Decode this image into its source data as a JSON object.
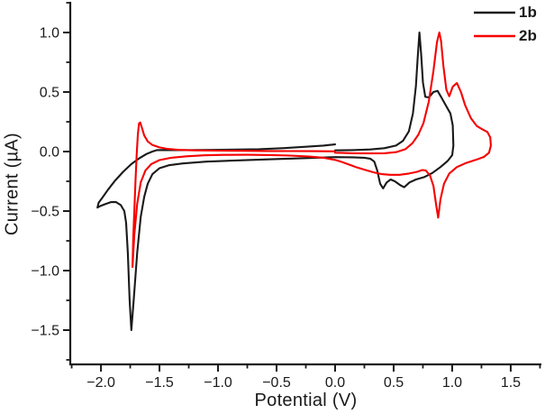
{
  "chart_data": {
    "type": "line",
    "title": "",
    "xlabel": "Potential (V)",
    "ylabel": "Current (µA)",
    "xlim": [
      -2.262,
      1.762
    ],
    "ylim": [
      -1.788,
      1.258
    ],
    "grid": false,
    "legend_position": "top-right",
    "x_major_ticks": [
      -2.0,
      -1.5,
      -1.0,
      -0.5,
      0.0,
      0.5,
      1.0,
      1.5
    ],
    "x_tick_labels": [
      "−2.0",
      "−1.5",
      "−1.0",
      "−0.5",
      "0.0",
      "0.5",
      "1.0",
      "1.5"
    ],
    "x_minor_ticks": [
      -2.25,
      -1.75,
      -1.25,
      -0.75,
      -0.25,
      0.25,
      0.75,
      1.25,
      1.75
    ],
    "y_major_ticks": [
      1.0,
      0.5,
      0.0,
      -0.5,
      -1.0,
      -1.5
    ],
    "y_tick_labels": [
      "1.0",
      "0.5",
      "0.0",
      "−0.5",
      "−1.0",
      "−1.5"
    ],
    "y_minor_ticks": [
      1.25,
      0.75,
      0.25,
      -0.25,
      -0.75,
      -1.25,
      -1.75
    ],
    "legend": [
      {
        "label": "1b",
        "color": "#1a1a1a"
      },
      {
        "label": "2b",
        "color": "#f60000"
      }
    ],
    "series": [
      {
        "name": "1b",
        "color": "#1a1a1a",
        "description": "cyclic voltammogram, scan 0 V -> +1.0 V -> -2.0 V -> 0 V; anodic peaks 0.72 V (1.0 uA) and 0.88 V (0.51 uA); cathodic return dips -0.31 uA at 0.59 V and 0.41 V; sharp reduction peak -1.50 uA at -1.74 V",
        "points": [
          [
            0.0,
            0.01
          ],
          [
            0.15,
            0.012
          ],
          [
            0.3,
            0.018
          ],
          [
            0.42,
            0.028
          ],
          [
            0.52,
            0.05
          ],
          [
            0.58,
            0.09
          ],
          [
            0.63,
            0.17
          ],
          [
            0.665,
            0.32
          ],
          [
            0.69,
            0.55
          ],
          [
            0.705,
            0.78
          ],
          [
            0.72,
            1.0
          ],
          [
            0.735,
            0.82
          ],
          [
            0.75,
            0.58
          ],
          [
            0.77,
            0.46
          ],
          [
            0.8,
            0.455
          ],
          [
            0.84,
            0.5
          ],
          [
            0.875,
            0.51
          ],
          [
            0.91,
            0.45
          ],
          [
            0.95,
            0.38
          ],
          [
            0.985,
            0.32
          ],
          [
            1.005,
            0.22
          ],
          [
            1.01,
            0.05
          ],
          [
            1.0,
            -0.03
          ],
          [
            0.96,
            -0.08
          ],
          [
            0.9,
            -0.13
          ],
          [
            0.83,
            -0.18
          ],
          [
            0.76,
            -0.215
          ],
          [
            0.69,
            -0.235
          ],
          [
            0.635,
            -0.26
          ],
          [
            0.59,
            -0.3
          ],
          [
            0.56,
            -0.285
          ],
          [
            0.51,
            -0.25
          ],
          [
            0.475,
            -0.235
          ],
          [
            0.44,
            -0.26
          ],
          [
            0.41,
            -0.31
          ],
          [
            0.385,
            -0.27
          ],
          [
            0.36,
            -0.16
          ],
          [
            0.335,
            -0.085
          ],
          [
            0.3,
            -0.06
          ],
          [
            0.25,
            -0.052
          ],
          [
            0.15,
            -0.048
          ],
          [
            0.0,
            -0.047
          ],
          [
            -0.25,
            -0.055
          ],
          [
            -0.55,
            -0.065
          ],
          [
            -0.85,
            -0.075
          ],
          [
            -1.1,
            -0.085
          ],
          [
            -1.3,
            -0.1
          ],
          [
            -1.42,
            -0.115
          ],
          [
            -1.5,
            -0.14
          ],
          [
            -1.56,
            -0.19
          ],
          [
            -1.6,
            -0.27
          ],
          [
            -1.63,
            -0.38
          ],
          [
            -1.66,
            -0.55
          ],
          [
            -1.69,
            -0.85
          ],
          [
            -1.72,
            -1.25
          ],
          [
            -1.74,
            -1.5
          ],
          [
            -1.755,
            -1.25
          ],
          [
            -1.77,
            -0.85
          ],
          [
            -1.785,
            -0.6
          ],
          [
            -1.8,
            -0.5
          ],
          [
            -1.83,
            -0.45
          ],
          [
            -1.87,
            -0.425
          ],
          [
            -1.915,
            -0.425
          ],
          [
            -1.96,
            -0.44
          ],
          [
            -2.0,
            -0.455
          ],
          [
            -2.03,
            -0.47
          ],
          [
            -2.02,
            -0.43
          ],
          [
            -1.99,
            -0.39
          ],
          [
            -1.94,
            -0.32
          ],
          [
            -1.88,
            -0.245
          ],
          [
            -1.81,
            -0.17
          ],
          [
            -1.74,
            -0.105
          ],
          [
            -1.67,
            -0.055
          ],
          [
            -1.61,
            -0.02
          ],
          [
            -1.56,
            0.0
          ],
          [
            -1.52,
            0.012
          ],
          [
            -1.47,
            0.013
          ],
          [
            -1.4,
            0.012
          ],
          [
            -1.25,
            0.012
          ],
          [
            -1.05,
            0.014
          ],
          [
            -0.85,
            0.017
          ],
          [
            -0.65,
            0.02
          ],
          [
            -0.45,
            0.028
          ],
          [
            -0.25,
            0.04
          ],
          [
            -0.1,
            0.05
          ],
          [
            0.0,
            0.06
          ]
        ]
      },
      {
        "name": "2b",
        "color": "#f60000",
        "description": "cyclic voltammogram, scan 0 V -> +1.3 V -> -1.78 V -> 0 V; anodic peaks 0.89 V (1.0 uA) and 1.04 V (0.58 uA); cathodic return spike -0.55 uA at 0.88 V; reduction spike -0.97 uA at -1.73 V with re-oxidation peak +0.25 uA at -1.67 V",
        "points": [
          [
            0.0,
            -0.01
          ],
          [
            0.15,
            -0.014
          ],
          [
            0.3,
            -0.016
          ],
          [
            0.42,
            -0.014
          ],
          [
            0.52,
            -0.005
          ],
          [
            0.6,
            0.02
          ],
          [
            0.66,
            0.07
          ],
          [
            0.71,
            0.14
          ],
          [
            0.755,
            0.24
          ],
          [
            0.8,
            0.42
          ],
          [
            0.84,
            0.68
          ],
          [
            0.87,
            0.92
          ],
          [
            0.89,
            1.0
          ],
          [
            0.905,
            0.93
          ],
          [
            0.925,
            0.72
          ],
          [
            0.95,
            0.52
          ],
          [
            0.975,
            0.465
          ],
          [
            1.005,
            0.545
          ],
          [
            1.04,
            0.575
          ],
          [
            1.075,
            0.5
          ],
          [
            1.11,
            0.39
          ],
          [
            1.16,
            0.28
          ],
          [
            1.21,
            0.215
          ],
          [
            1.26,
            0.185
          ],
          [
            1.3,
            0.165
          ],
          [
            1.325,
            0.12
          ],
          [
            1.33,
            0.05
          ],
          [
            1.315,
            -0.01
          ],
          [
            1.27,
            -0.045
          ],
          [
            1.2,
            -0.07
          ],
          [
            1.12,
            -0.095
          ],
          [
            1.04,
            -0.13
          ],
          [
            0.975,
            -0.185
          ],
          [
            0.93,
            -0.27
          ],
          [
            0.9,
            -0.4
          ],
          [
            0.88,
            -0.555
          ],
          [
            0.862,
            -0.44
          ],
          [
            0.84,
            -0.29
          ],
          [
            0.81,
            -0.2
          ],
          [
            0.775,
            -0.16
          ],
          [
            0.745,
            -0.155
          ],
          [
            0.7,
            -0.17
          ],
          [
            0.63,
            -0.185
          ],
          [
            0.55,
            -0.195
          ],
          [
            0.47,
            -0.195
          ],
          [
            0.4,
            -0.19
          ],
          [
            0.33,
            -0.175
          ],
          [
            0.26,
            -0.155
          ],
          [
            0.19,
            -0.135
          ],
          [
            0.12,
            -0.11
          ],
          [
            0.05,
            -0.085
          ],
          [
            0.0,
            -0.07
          ],
          [
            -0.1,
            -0.052
          ],
          [
            -0.22,
            -0.042
          ],
          [
            -0.38,
            -0.034
          ],
          [
            -0.55,
            -0.029
          ],
          [
            -0.75,
            -0.027
          ],
          [
            -0.95,
            -0.028
          ],
          [
            -1.12,
            -0.032
          ],
          [
            -1.27,
            -0.04
          ],
          [
            -1.4,
            -0.052
          ],
          [
            -1.5,
            -0.072
          ],
          [
            -1.57,
            -0.105
          ],
          [
            -1.62,
            -0.16
          ],
          [
            -1.66,
            -0.26
          ],
          [
            -1.69,
            -0.44
          ],
          [
            -1.715,
            -0.7
          ],
          [
            -1.73,
            -0.97
          ],
          [
            -1.725,
            -0.75
          ],
          [
            -1.715,
            -0.5
          ],
          [
            -1.705,
            -0.25
          ],
          [
            -1.695,
            -0.03
          ],
          [
            -1.685,
            0.14
          ],
          [
            -1.675,
            0.235
          ],
          [
            -1.665,
            0.245
          ],
          [
            -1.65,
            0.2
          ],
          [
            -1.63,
            0.135
          ],
          [
            -1.6,
            0.085
          ],
          [
            -1.56,
            0.055
          ],
          [
            -1.5,
            0.035
          ],
          [
            -1.43,
            0.022
          ],
          [
            -1.33,
            0.014
          ],
          [
            -1.2,
            0.01
          ],
          [
            -1.0,
            0.008
          ],
          [
            -0.8,
            0.006
          ],
          [
            -0.6,
            0.005
          ],
          [
            -0.4,
            0.004
          ],
          [
            -0.2,
            0.003
          ],
          [
            0.0,
            0.002
          ]
        ]
      }
    ]
  }
}
